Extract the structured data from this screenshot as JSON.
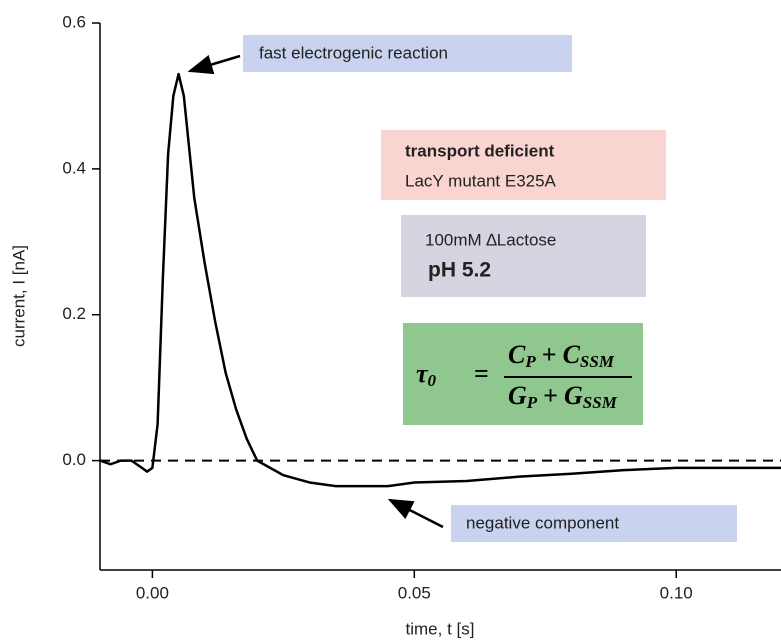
{
  "chart_data": {
    "type": "line",
    "x_label": "time, t [s]",
    "y_label": "current, I [nA]",
    "x": [
      -0.01,
      -0.008,
      -0.006,
      -0.004,
      -0.002,
      -0.001,
      0,
      0.001,
      0.002,
      0.003,
      0.004,
      0.005,
      0.006,
      0.007,
      0.008,
      0.01,
      0.012,
      0.014,
      0.016,
      0.018,
      0.02,
      0.025,
      0.03,
      0.035,
      0.04,
      0.045,
      0.05,
      0.06,
      0.07,
      0.08,
      0.09,
      0.1,
      0.11,
      0.12
    ],
    "series": [
      {
        "color": "#000000",
        "values": [
          0,
          -0.005,
          0,
          0,
          -0.01,
          -0.015,
          -0.01,
          0.05,
          0.25,
          0.42,
          0.5,
          0.53,
          0.5,
          0.43,
          0.36,
          0.27,
          0.19,
          0.12,
          0.07,
          0.03,
          0,
          -0.02,
          -0.03,
          -0.035,
          -0.035,
          -0.035,
          -0.03,
          -0.028,
          -0.022,
          -0.018,
          -0.013,
          -0.01,
          -0.01,
          -0.01
        ]
      }
    ],
    "xlim": [
      -0.01,
      0.12
    ],
    "ylim": [
      -0.15,
      0.6
    ],
    "xticks": [
      {
        "value": 0,
        "label": "0.00"
      },
      0.05,
      {
        "value": 0.1,
        "label": "0.10"
      }
    ],
    "yticks": [
      {
        "value": 0,
        "label": "0.0"
      },
      0.2,
      0.4,
      0.6
    ],
    "reference_line": 0,
    "annotations": {
      "peak": "fast electrogenic reaction",
      "mutant_title": "transport deficient",
      "mutant_name": "LacY mutant E325A",
      "substrate": "100mM ∆Lactose",
      "ph": "pH 5.2",
      "negative": "negative component",
      "equation": {
        "lhs": "τ",
        "lhs_sub": "0",
        "equals": "=",
        "num_a": "C",
        "num_a_sub": "P",
        "num_plus": "+",
        "num_b": "C",
        "num_b_sub": "SSM",
        "den_a": "G",
        "den_a_sub": "P",
        "den_plus": "+",
        "den_b": "G",
        "den_b_sub": "SSM"
      }
    }
  }
}
